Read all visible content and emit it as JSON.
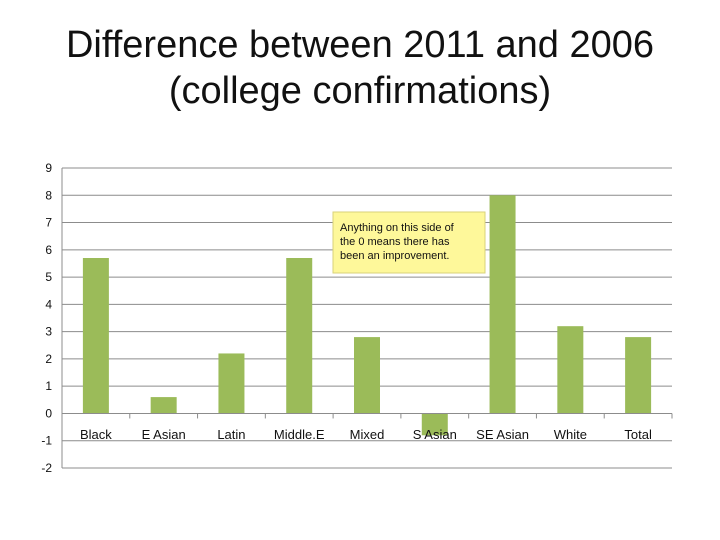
{
  "title_line1": "Difference between 2011 and 2006",
  "title_line2": "(college confirmations)",
  "chart_data": {
    "type": "bar",
    "title": "Difference between 2011 and 2006 (college confirmations)",
    "categories": [
      "Black",
      "E Asian",
      "Latin",
      "Middle.E",
      "Mixed",
      "S Asian",
      "SE Asian",
      "White",
      "Total"
    ],
    "values": [
      5.7,
      0.6,
      2.2,
      5.7,
      2.8,
      -0.8,
      8.0,
      3.2,
      2.8
    ],
    "ylim": [
      -2,
      9
    ],
    "yticks": [
      9,
      8,
      7,
      6,
      5,
      4,
      3,
      2,
      1,
      0,
      -1,
      -2
    ],
    "grid": true,
    "bar_color": "#9bbb59",
    "annotation": "Anything on this side of the 0 means there has been an improvement.",
    "annotation_lines": [
      "Anything on this side of",
      "the 0 means there has",
      "been an improvement."
    ],
    "annotation_fill": "#fef89a"
  }
}
